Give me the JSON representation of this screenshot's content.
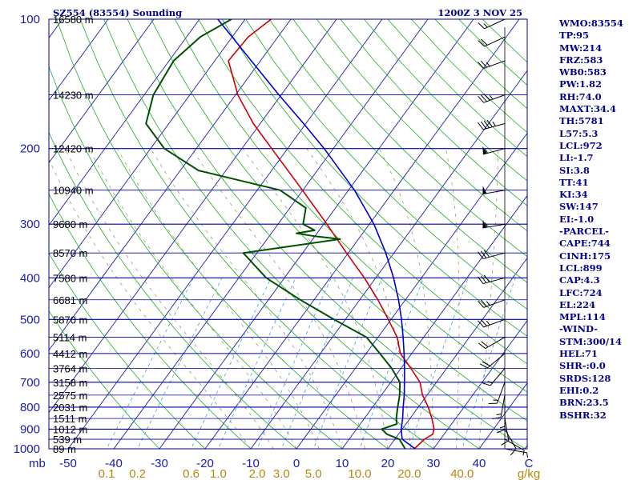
{
  "title_left": "SZ554 (83554) Sounding",
  "title_right": "1200Z  3 NOV 25",
  "pressure_labels": [
    "100",
    "200",
    "300",
    "400",
    "500",
    "600",
    "700",
    "800",
    "900",
    "1000"
  ],
  "pressure_unit": "mb",
  "height_labels": [
    {
      "p": 100,
      "text": "16580 m"
    },
    {
      "p": 150,
      "text": "14230 m"
    },
    {
      "p": 200,
      "text": "12420 m"
    },
    {
      "p": 250,
      "text": "10940 m"
    },
    {
      "p": 300,
      "text": "9680 m"
    },
    {
      "p": 350,
      "text": "8570 m"
    },
    {
      "p": 400,
      "text": "7580 m"
    },
    {
      "p": 450,
      "text": "6681 m"
    },
    {
      "p": 500,
      "text": "5870 m"
    },
    {
      "p": 550,
      "text": "5114 m"
    },
    {
      "p": 600,
      "text": "4412 m"
    },
    {
      "p": 650,
      "text": "3764 m"
    },
    {
      "p": 700,
      "text": "3158 m"
    },
    {
      "p": 750,
      "text": "2575 m"
    },
    {
      "p": 800,
      "text": "2031 m"
    },
    {
      "p": 850,
      "text": "1511 m"
    },
    {
      "p": 900,
      "text": "1012 m"
    },
    {
      "p": 950,
      "text": "539 m"
    },
    {
      "p": 1000,
      "text": "89 m"
    }
  ],
  "temp_labels": [
    "-50",
    "-40",
    "-30",
    "-20",
    "-10",
    "0",
    "10",
    "20",
    "30",
    "40"
  ],
  "temp_unit": "C",
  "mixing_labels": [
    "0.1",
    "0.2",
    "0.6",
    "1.0",
    "2.0",
    "3.0",
    "5.0",
    "10.0",
    "20.0",
    "40.0"
  ],
  "mixing_unit": "g/kg",
  "stats": [
    "WMO:83554",
    "TP:95",
    "MW:214",
    "FRZ:583",
    "WB0:583",
    "PW:1.82",
    "RH:74.0",
    "MAXT:34.4",
    "TH:5781",
    "L57:5.3",
    "LCL:972",
    "LI:-1.7",
    "SI:3.8",
    "TT:41",
    "KI:34",
    "SW:147",
    "EI:-1.0",
    "-PARCEL-",
    "CAPE:744",
    "CINH:175",
    "LCL:899",
    "CAP:4.3",
    "LFC:724",
    "EL:224",
    "MPL:114",
    "-WIND-",
    "STM:300/14",
    "HEL:71",
    "SHR-:0.0",
    "SRDS:128",
    "EHI:0.2",
    "BRN:23.5",
    "BSHR:32"
  ],
  "colors": {
    "temperature": "#cc0000",
    "dewpoint": "#005000",
    "parcel": "#0000cc",
    "isobar": "#0000aa",
    "isotherm": "#1c1cb0",
    "dry_adiabat": "#22aa22",
    "mixing_ratio": "#40a0e0",
    "moist_adiabat": "#909060",
    "label": "#1c1ca8",
    "mixing_label": "#b8860b"
  },
  "chart_data": {
    "type": "line",
    "title": "SZ554 (83554) Sounding",
    "xlabel": "C",
    "ylabel": "mb",
    "x_range": [
      -50,
      50
    ],
    "y_range_mb": [
      1000,
      100
    ],
    "y_scale": "log-pressure (skew-T)",
    "series": [
      {
        "points": [
          [
            1000,
            25.8
          ],
          [
            950,
            26.5
          ],
          [
            925,
            27.5
          ],
          [
            900,
            27.0
          ],
          [
            850,
            24.8
          ],
          [
            800,
            22.2
          ],
          [
            750,
            19.0
          ],
          [
            700,
            16.4
          ],
          [
            650,
            12.2
          ],
          [
            600,
            7.5
          ],
          [
            550,
            4.2
          ],
          [
            500,
            -0.6
          ],
          [
            450,
            -6.0
          ],
          [
            400,
            -12.5
          ],
          [
            350,
            -20.4
          ],
          [
            300,
            -29.3
          ],
          [
            250,
            -40.1
          ],
          [
            200,
            -53.5
          ],
          [
            175,
            -61.5
          ],
          [
            150,
            -69.5
          ],
          [
            125,
            -77.0
          ],
          [
            110,
            -76.5
          ],
          [
            100,
            -74.3
          ]
        ]
      },
      {
        "points": [
          [
            1000,
            23.8
          ],
          [
            950,
            21.0
          ],
          [
            925,
            17.5
          ],
          [
            900,
            15.5
          ],
          [
            875,
            18.0
          ],
          [
            850,
            17.0
          ],
          [
            800,
            15.5
          ],
          [
            750,
            14.0
          ],
          [
            700,
            12.0
          ],
          [
            650,
            8.0
          ],
          [
            600,
            3.0
          ],
          [
            550,
            -2.5
          ],
          [
            500,
            -12.5
          ],
          [
            450,
            -23.0
          ],
          [
            400,
            -34.0
          ],
          [
            350,
            -43.0
          ],
          [
            325,
            -24.0
          ],
          [
            320,
            -30.0
          ],
          [
            315,
            -34.5
          ],
          [
            310,
            -31.0
          ],
          [
            300,
            -34.5
          ],
          [
            275,
            -36.5
          ],
          [
            250,
            -45.0
          ],
          [
            225,
            -66.0
          ],
          [
            200,
            -77.0
          ],
          [
            175,
            -85.0
          ],
          [
            150,
            -88.0
          ],
          [
            125,
            -89.0
          ],
          [
            110,
            -87.0
          ],
          [
            100,
            -83.0
          ]
        ]
      },
      {
        "points": [
          [
            1000,
            26.0
          ],
          [
            950,
            21.6
          ],
          [
            900,
            19.8
          ],
          [
            850,
            18.4
          ],
          [
            800,
            16.7
          ],
          [
            750,
            15.0
          ],
          [
            700,
            13.0
          ],
          [
            650,
            10.8
          ],
          [
            600,
            8.3
          ],
          [
            550,
            5.5
          ],
          [
            500,
            2.3
          ],
          [
            450,
            -1.5
          ],
          [
            400,
            -6.1
          ],
          [
            350,
            -11.8
          ],
          [
            300,
            -19.0
          ],
          [
            250,
            -28.7
          ],
          [
            200,
            -42.0
          ],
          [
            175,
            -50.5
          ],
          [
            150,
            -60.5
          ],
          [
            125,
            -72.0
          ],
          [
            110,
            -80.0
          ],
          [
            100,
            -86.0
          ]
        ]
      }
    ],
    "winds": [
      {
        "p": 1000,
        "dir": 100,
        "spd": 5
      },
      {
        "p": 950,
        "dir": 120,
        "spd": 5
      },
      {
        "p": 900,
        "dir": 150,
        "spd": 10
      },
      {
        "p": 850,
        "dir": 170,
        "spd": 10
      },
      {
        "p": 800,
        "dir": 180,
        "spd": 15
      },
      {
        "p": 750,
        "dir": 190,
        "spd": 15
      },
      {
        "p": 700,
        "dir": 200,
        "spd": 15
      },
      {
        "p": 650,
        "dir": 220,
        "spd": 15
      },
      {
        "p": 600,
        "dir": 230,
        "spd": 20
      },
      {
        "p": 550,
        "dir": 240,
        "spd": 20
      },
      {
        "p": 500,
        "dir": 250,
        "spd": 25
      },
      {
        "p": 450,
        "dir": 250,
        "spd": 25
      },
      {
        "p": 400,
        "dir": 255,
        "spd": 30
      },
      {
        "p": 350,
        "dir": 255,
        "spd": 30
      },
      {
        "p": 300,
        "dir": 260,
        "spd": 55
      },
      {
        "p": 250,
        "dir": 260,
        "spd": 50
      },
      {
        "p": 200,
        "dir": 255,
        "spd": 55
      },
      {
        "p": 175,
        "dir": 255,
        "spd": 45
      },
      {
        "p": 150,
        "dir": 250,
        "spd": 35
      },
      {
        "p": 125,
        "dir": 250,
        "spd": 25
      },
      {
        "p": 110,
        "dir": 245,
        "spd": 20
      },
      {
        "p": 100,
        "dir": 245,
        "spd": 15
      }
    ]
  }
}
